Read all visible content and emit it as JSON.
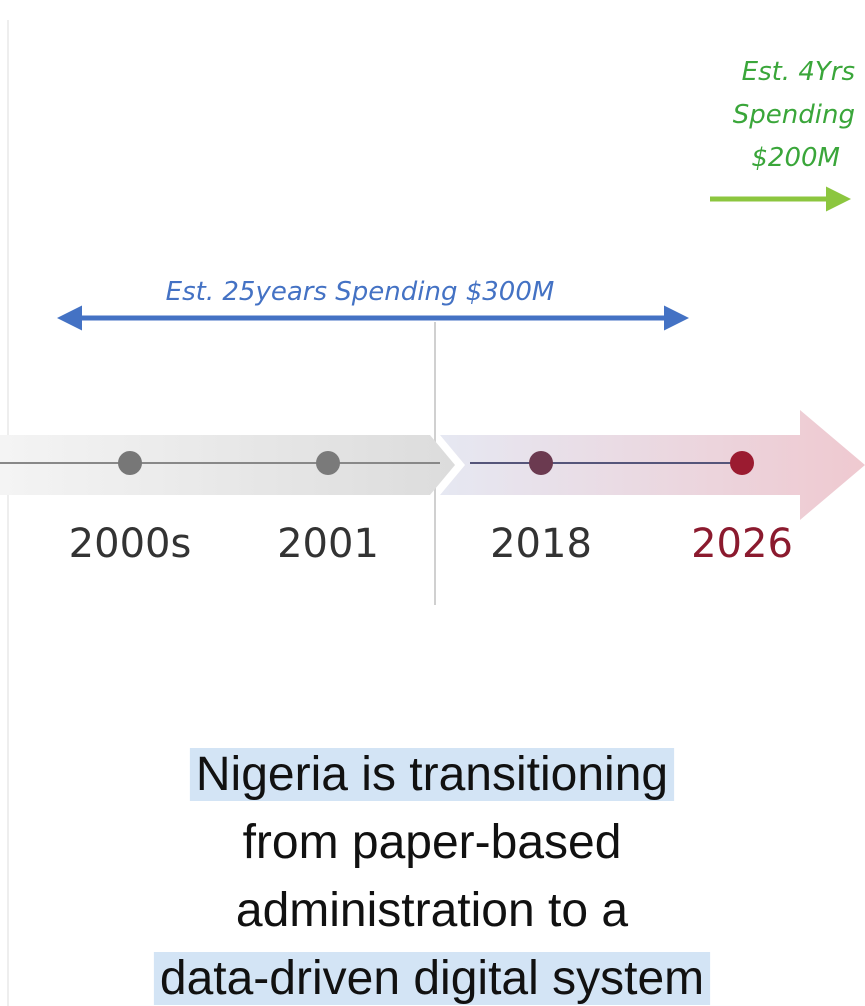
{
  "annotations": {
    "recent": [
      "Est.  4Yrs",
      "Spending",
      "$200M"
    ],
    "past": "Est. 25years Spending $300M"
  },
  "timeline": {
    "labels": [
      "2000s",
      "2001",
      "2018",
      "2026"
    ]
  },
  "caption": {
    "lines": [
      "Nigeria is transitioning",
      "from paper-based",
      "administration to a",
      "data-driven digital system"
    ]
  }
}
